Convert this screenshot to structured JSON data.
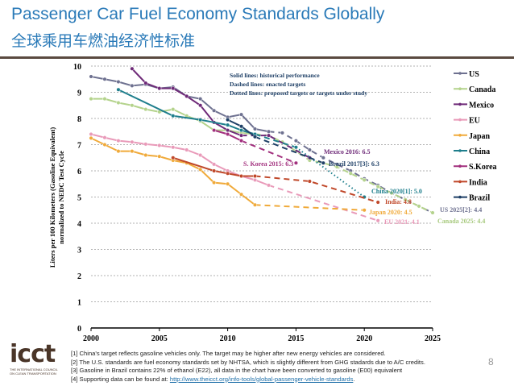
{
  "header": {
    "title": "Passenger Car Fuel Economy Standards Globally",
    "subtitle": "全球乘用车燃油经济性标准",
    "page_number": "8"
  },
  "chart_data": {
    "type": "line",
    "ylabel": [
      "Liters per 100 Kilometers (Gasoline Equivalent)",
      "normalized to NEDC Test Cycle"
    ],
    "xlim": [
      2000,
      2025
    ],
    "ylim": [
      0,
      10
    ],
    "xticks": [
      2000,
      2005,
      2010,
      2015,
      2020,
      2025
    ],
    "yticks": [
      0,
      1,
      2,
      3,
      4,
      5,
      6,
      7,
      8,
      9,
      10
    ],
    "grid": true,
    "legend": "right",
    "legend_notes": [
      "Solid lines: historical performance",
      "Dashed lines: enacted targets",
      "Dotted lines: proposed targets or targets under study"
    ],
    "series": [
      {
        "name": "US",
        "color": "#6e7190",
        "historical": [
          [
            2000,
            9.6
          ],
          [
            2001,
            9.5
          ],
          [
            2002,
            9.4
          ],
          [
            2003,
            9.25
          ],
          [
            2004,
            9.3
          ],
          [
            2005,
            9.15
          ],
          [
            2006,
            9.2
          ],
          [
            2007,
            8.85
          ],
          [
            2008,
            8.75
          ],
          [
            2009,
            8.3
          ],
          [
            2010,
            8.05
          ],
          [
            2011,
            8.15
          ],
          [
            2012,
            7.6
          ],
          [
            2013,
            7.5
          ]
        ],
        "enacted": [
          [
            2013,
            7.5
          ],
          [
            2014,
            7.45
          ],
          [
            2015,
            7.15
          ],
          [
            2016,
            6.8
          ],
          [
            2017,
            6.5
          ],
          [
            2018,
            6.25
          ],
          [
            2019,
            6.0
          ],
          [
            2020,
            5.7
          ],
          [
            2021,
            5.45
          ],
          [
            2022,
            5.15
          ],
          [
            2023,
            4.9
          ],
          [
            2024,
            4.65
          ],
          [
            2025,
            4.4
          ]
        ],
        "proposed": []
      },
      {
        "name": "Canada",
        "color": "#b4d38c",
        "historical": [
          [
            2000,
            8.75
          ],
          [
            2001,
            8.75
          ],
          [
            2002,
            8.6
          ],
          [
            2003,
            8.5
          ],
          [
            2004,
            8.35
          ],
          [
            2005,
            8.25
          ],
          [
            2006,
            8.35
          ],
          [
            2007,
            8.1
          ],
          [
            2008,
            7.9
          ],
          [
            2009,
            7.55
          ],
          [
            2010,
            7.55
          ],
          [
            2011,
            7.45
          ],
          [
            2012,
            7.4
          ]
        ],
        "enacted": [
          [
            2012,
            7.4
          ],
          [
            2013,
            7.35
          ],
          [
            2014,
            7.1
          ],
          [
            2015,
            6.75
          ],
          [
            2016,
            6.4
          ],
          [
            2017,
            6.3
          ],
          [
            2018,
            6.15
          ],
          [
            2019,
            5.9
          ],
          [
            2020,
            5.65
          ],
          [
            2021,
            5.4
          ],
          [
            2022,
            5.15
          ],
          [
            2023,
            4.9
          ],
          [
            2024,
            4.65
          ],
          [
            2025,
            4.4
          ]
        ],
        "proposed": []
      },
      {
        "name": "Mexico",
        "color": "#6e2a78",
        "historical": [
          [
            2003,
            9.9
          ],
          [
            2004,
            9.35
          ],
          [
            2005,
            9.15
          ],
          [
            2006,
            9.15
          ],
          [
            2007,
            8.85
          ],
          [
            2008,
            8.5
          ],
          [
            2009,
            7.85
          ],
          [
            2010,
            7.55
          ],
          [
            2011,
            7.35
          ]
        ],
        "enacted": [
          [
            2011,
            7.35
          ],
          [
            2013,
            7.35
          ],
          [
            2016,
            6.5
          ]
        ],
        "proposed": []
      },
      {
        "name": "EU",
        "color": "#e99ab9",
        "historical": [
          [
            2000,
            7.4
          ],
          [
            2001,
            7.27
          ],
          [
            2002,
            7.15
          ],
          [
            2003,
            7.1
          ],
          [
            2004,
            7.02
          ],
          [
            2005,
            6.97
          ],
          [
            2006,
            6.9
          ],
          [
            2007,
            6.8
          ],
          [
            2008,
            6.6
          ],
          [
            2009,
            6.25
          ],
          [
            2010,
            6.0
          ],
          [
            2011,
            5.8
          ],
          [
            2012,
            5.65
          ],
          [
            2013,
            5.45
          ]
        ],
        "enacted": [
          [
            2013,
            5.45
          ],
          [
            2021,
            4.1
          ]
        ],
        "proposed": []
      },
      {
        "name": "Japan",
        "color": "#f0aa3a",
        "historical": [
          [
            2000,
            7.25
          ],
          [
            2001,
            7.0
          ],
          [
            2002,
            6.75
          ],
          [
            2003,
            6.75
          ],
          [
            2004,
            6.6
          ],
          [
            2005,
            6.55
          ],
          [
            2006,
            6.4
          ],
          [
            2007,
            6.3
          ],
          [
            2008,
            6.05
          ],
          [
            2009,
            5.55
          ],
          [
            2010,
            5.5
          ],
          [
            2011,
            5.1
          ],
          [
            2012,
            4.7
          ]
        ],
        "enacted": [
          [
            2012,
            4.7
          ],
          [
            2020,
            4.5
          ]
        ],
        "proposed": []
      },
      {
        "name": "China",
        "color": "#1e7e8c",
        "historical": [
          [
            2002,
            9.1
          ],
          [
            2006,
            8.1
          ],
          [
            2008,
            7.95
          ],
          [
            2010,
            7.75
          ],
          [
            2011,
            7.55
          ],
          [
            2012,
            7.4
          ]
        ],
        "enacted": [
          [
            2012,
            7.4
          ],
          [
            2015,
            6.9
          ]
        ],
        "proposed": [
          [
            2015,
            6.9
          ],
          [
            2020,
            5.0
          ]
        ]
      },
      {
        "name": "S.Korea",
        "color": "#a2307e",
        "historical": [
          [
            2009,
            7.55
          ],
          [
            2010,
            7.4
          ],
          [
            2011,
            7.15
          ]
        ],
        "enacted": [
          [
            2011,
            7.15
          ],
          [
            2015,
            6.3
          ]
        ],
        "proposed": []
      },
      {
        "name": "India",
        "color": "#c0482a",
        "historical": [
          [
            2006,
            6.5
          ],
          [
            2009,
            6.0
          ],
          [
            2010,
            5.9
          ],
          [
            2011,
            5.8
          ],
          [
            2012,
            5.8
          ]
        ],
        "enacted": [
          [
            2012,
            5.8
          ],
          [
            2016,
            5.6
          ],
          [
            2021,
            4.8
          ]
        ],
        "proposed": []
      },
      {
        "name": "Brazil",
        "color": "#1e3f66",
        "historical": [
          [
            2010,
            7.95
          ],
          [
            2011,
            7.7
          ],
          [
            2012,
            7.3
          ]
        ],
        "enacted": [
          [
            2012,
            7.3
          ],
          [
            2017,
            6.3
          ]
        ],
        "proposed": []
      }
    ],
    "annotations": [
      {
        "text": "Mexico 2016: 6.5",
        "color": "#6e2a78"
      },
      {
        "text": "S. Korea 2015: 6.3",
        "color": "#a2307e"
      },
      {
        "text": "Brazil 2017[3]: 6.3",
        "color": "#1e3f66"
      },
      {
        "text": "China 2020[1]: 5.0",
        "color": "#1e7e8c"
      },
      {
        "text": "India: 4.8",
        "color": "#c0482a"
      },
      {
        "text": "Japan 2020: 4.5",
        "color": "#f0aa3a"
      },
      {
        "text": "EU 2021: 4.1",
        "color": "#e99ab9"
      },
      {
        "text": "US 2025[2]: 4.4",
        "color": "#6e7190"
      },
      {
        "text": "Canada 2025: 4.4",
        "color": "#a7c97e"
      }
    ]
  },
  "footnotes": [
    "[1] China's target reflects gasoline vehicles only. The target may be higher after new energy vehicles are considered.",
    "[2] The U.S. standards are fuel economy standards set by NHTSA, which is slightly different from GHG stadards due to A/C credits.",
    "[3] Gasoline in Brazil contains 22% of ethanol (E22), all data in the chart have been converted to gasoline (E00) equivalent",
    "[4] Supporting data can be found at: "
  ],
  "footnote_link": "http://www.theicct.org/info-tools/global-passenger-vehicle-standards",
  "logo": {
    "text": "icct",
    "tagline": "THE INTERNATIONAL COUNCIL ON CLEAN TRANSPORTATION"
  }
}
